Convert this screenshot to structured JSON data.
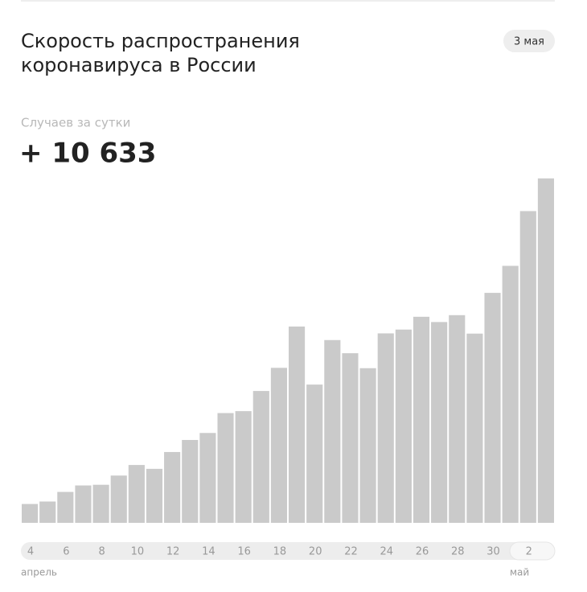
{
  "chart_data": {
    "type": "bar",
    "title_lines": [
      "Скорость распространения",
      "коронавируса в России"
    ],
    "date": "3 мая",
    "subtitle": "Случаев за сутки",
    "headline": "+ 10 633",
    "categories": [
      "4",
      null,
      "6",
      null,
      "8",
      null,
      "10",
      null,
      "12",
      null,
      "14",
      null,
      "16",
      null,
      "18",
      null,
      "20",
      null,
      "22",
      null,
      "24",
      null,
      "26",
      null,
      "28",
      null,
      "30",
      null,
      "2",
      null
    ],
    "months": [
      "апрель",
      "май"
    ],
    "values": [
      582,
      658,
      954,
      1154,
      1175,
      1459,
      1786,
      1667,
      2186,
      2558,
      2774,
      3388,
      3448,
      4070,
      4785,
      6060,
      4268,
      5642,
      5236,
      4774,
      5849,
      5966,
      6361,
      6198,
      6411,
      5841,
      7099,
      7933,
      9623,
      10633
    ],
    "color": "#cacaca",
    "ylim": [
      0,
      11000
    ]
  }
}
